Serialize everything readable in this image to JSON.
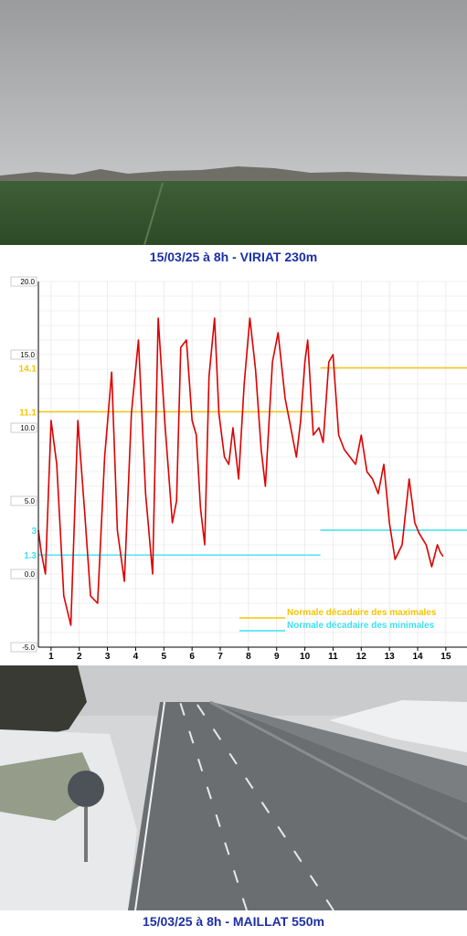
{
  "top_caption": "15/03/25 à 8h - VIRIAT 230m",
  "bottom_caption": "15/03/25 à 8h - MAILLAT 550m",
  "colors": {
    "caption": "#1c2fa8",
    "temperature": "#dd0000",
    "normal_max": "#f5c400",
    "normal_min": "#3fe0f0"
  },
  "chart_data": {
    "type": "line",
    "ylim": [
      -5,
      20
    ],
    "y_ticks": [
      "20.0",
      "15.0",
      "10.0",
      "5.0",
      "0.0",
      "-5.0"
    ],
    "x_ticks": [
      "1",
      "2",
      "3",
      "4",
      "5",
      "6",
      "7",
      "8",
      "9",
      "10",
      "11",
      "12",
      "13",
      "14",
      "15"
    ],
    "grid": true,
    "series": [
      {
        "type": "temperature",
        "x": [
          0.55,
          0.65,
          0.8,
          1.0,
          1.2,
          1.45,
          1.7,
          1.95,
          2.2,
          2.4,
          2.65,
          2.9,
          3.15,
          3.35,
          3.6,
          3.85,
          4.1,
          4.35,
          4.6,
          4.8,
          5.05,
          5.3,
          5.45,
          5.6,
          5.8,
          6.0,
          6.15,
          6.3,
          6.45,
          6.6,
          6.8,
          6.95,
          7.15,
          7.3,
          7.45,
          7.65,
          7.85,
          8.05,
          8.25,
          8.45,
          8.6,
          8.85,
          9.05,
          9.3,
          9.5,
          9.7,
          9.85,
          10.0,
          10.1,
          10.3,
          10.5,
          10.65,
          10.85,
          11.0,
          11.2,
          11.4,
          11.6,
          11.8,
          12.0,
          12.2,
          12.4,
          12.6,
          12.8,
          13.0,
          13.2,
          13.45,
          13.7,
          13.9,
          14.05,
          14.3,
          14.5,
          14.7,
          14.8,
          14.9
        ],
        "values": [
          3.0,
          1.5,
          0.0,
          10.5,
          7.5,
          -1.5,
          -3.5,
          10.5,
          4.0,
          -1.5,
          -2.0,
          8.0,
          13.8,
          3.0,
          -0.5,
          11.0,
          16.0,
          5.5,
          0.0,
          17.5,
          10.0,
          3.5,
          5.0,
          15.5,
          16.0,
          10.5,
          9.5,
          4.5,
          2.0,
          13.5,
          17.5,
          11.0,
          8.0,
          7.5,
          10.0,
          6.5,
          13.0,
          17.5,
          14.0,
          8.5,
          6.0,
          14.5,
          16.5,
          12.0,
          10.0,
          8.0,
          10.5,
          14.5,
          16.0,
          9.5,
          10.0,
          9.0,
          14.5,
          15.0,
          9.5,
          8.5,
          8.0,
          7.5,
          9.5,
          7.0,
          6.5,
          5.5,
          7.5,
          3.5,
          1.0,
          2.0,
          6.5,
          3.5,
          2.8,
          2.0,
          0.5,
          2.0,
          1.5,
          1.2
        ]
      }
    ],
    "normals": [
      {
        "label": "11.1",
        "value": 11.1,
        "from": 0.55,
        "to": 10.55
      },
      {
        "label": "14.1",
        "value": 14.1,
        "from": 10.55,
        "to": 15.75
      },
      {
        "label": "1.3",
        "value": 1.3,
        "from": 0.55,
        "to": 10.55
      },
      {
        "label": "3",
        "value": 3.0,
        "from": 10.55,
        "to": 15.75
      }
    ],
    "legend": [
      {
        "label": "Normale décadaire des maximales",
        "key": "normal_max"
      },
      {
        "label": "Normale décadaire des minimales",
        "key": "normal_min"
      }
    ]
  }
}
